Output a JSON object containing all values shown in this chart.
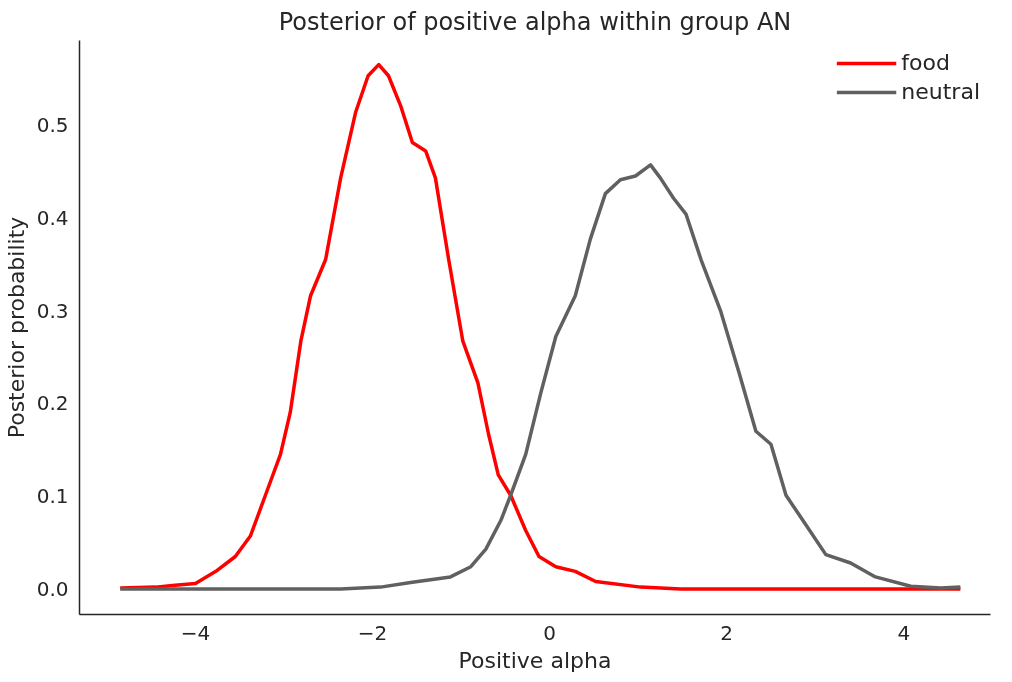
{
  "chart_data": {
    "type": "line",
    "title": "Posterior of positive alpha within group AN",
    "xlabel": "Positive alpha",
    "ylabel": "Posterior probability",
    "xlim": [
      -5.31,
      4.98
    ],
    "ylim": [
      -0.0275,
      0.591
    ],
    "xticks": [
      {
        "value": -4,
        "label": "−4"
      },
      {
        "value": -2,
        "label": "−2"
      },
      0,
      2,
      4
    ],
    "yticks": [
      {
        "value": 0,
        "label": "0.0"
      },
      0.1,
      0.2,
      0.3,
      0.4,
      0.5
    ],
    "grid": false,
    "legend": "top right",
    "series": [
      {
        "name": "food",
        "color": "#ff0000",
        "x": [
          -4.85,
          -4.45,
          -4.23,
          -4.0,
          -3.77,
          -3.55,
          -3.38,
          -3.21,
          -3.04,
          -2.93,
          -2.81,
          -2.7,
          -2.53,
          -2.36,
          -2.19,
          -2.05,
          -1.93,
          -1.82,
          -1.68,
          -1.55,
          -1.4,
          -1.29,
          -1.14,
          -0.98,
          -0.81,
          -0.69,
          -0.58,
          -0.44,
          -0.27,
          -0.12,
          0.07,
          0.29,
          0.52,
          1.03,
          1.48,
          4.64
        ],
        "values": [
          0.001,
          0.002,
          0.004,
          0.006,
          0.019,
          0.035,
          0.057,
          0.101,
          0.145,
          0.19,
          0.267,
          0.316,
          0.355,
          0.443,
          0.514,
          0.553,
          0.565,
          0.553,
          0.52,
          0.481,
          0.472,
          0.443,
          0.355,
          0.267,
          0.222,
          0.167,
          0.123,
          0.101,
          0.063,
          0.035,
          0.024,
          0.019,
          0.008,
          0.002,
          0.0,
          0.0
        ]
      },
      {
        "name": "neutral",
        "color": "#606060",
        "x": [
          -4.85,
          -2.36,
          -1.91,
          -1.57,
          -1.12,
          -0.89,
          -0.72,
          -0.55,
          -0.44,
          -0.27,
          -0.1,
          0.07,
          0.29,
          0.46,
          0.63,
          0.8,
          0.97,
          1.14,
          1.25,
          1.4,
          1.54,
          1.71,
          1.93,
          2.14,
          2.33,
          2.5,
          2.67,
          2.86,
          3.12,
          3.4,
          3.68,
          4.08,
          4.42,
          4.64
        ],
        "values": [
          0.0,
          0.0,
          0.002,
          0.007,
          0.013,
          0.024,
          0.043,
          0.074,
          0.101,
          0.145,
          0.211,
          0.272,
          0.316,
          0.377,
          0.426,
          0.441,
          0.445,
          0.457,
          0.443,
          0.421,
          0.404,
          0.355,
          0.3,
          0.233,
          0.17,
          0.156,
          0.101,
          0.074,
          0.037,
          0.028,
          0.013,
          0.003,
          0.001,
          0.002
        ]
      }
    ]
  }
}
